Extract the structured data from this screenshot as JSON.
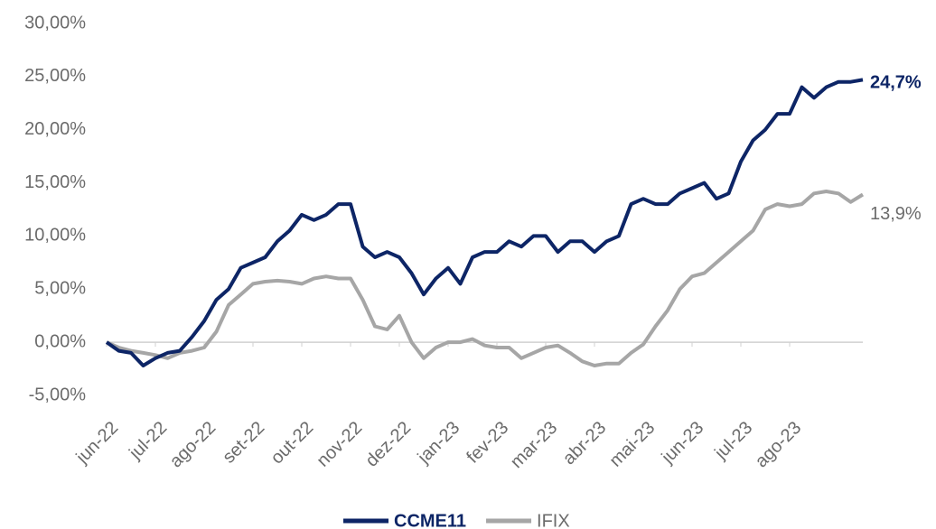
{
  "chart_data": {
    "type": "line",
    "categories": [
      "jun-22",
      null,
      null,
      null,
      "jul-22",
      null,
      null,
      null,
      "ago-22",
      null,
      null,
      null,
      "set-22",
      null,
      null,
      null,
      "out-22",
      null,
      null,
      null,
      "nov-22",
      null,
      null,
      null,
      "dez-22",
      null,
      null,
      null,
      "jan-23",
      null,
      null,
      null,
      "fev-23",
      null,
      null,
      null,
      "mar-23",
      null,
      null,
      null,
      "abr-23",
      null,
      null,
      null,
      "mai-23",
      null,
      null,
      null,
      "jun-23",
      null,
      null,
      null,
      "jul-23",
      null,
      null,
      null,
      "ago-23",
      null,
      null,
      null,
      null,
      null,
      null
    ],
    "series": [
      {
        "name": "CCME11",
        "color": "#0d2566",
        "end_label": "24,7%",
        "values": [
          0,
          -0.8,
          -1.0,
          -2.2,
          -1.5,
          -1.0,
          -0.8,
          0.5,
          2,
          4,
          5,
          7,
          7.5,
          8,
          9.5,
          10.5,
          12,
          11.5,
          12,
          13,
          13,
          9,
          8,
          8.5,
          8,
          6.5,
          4.5,
          6,
          7,
          5.5,
          8,
          8.5,
          8.5,
          9.5,
          9,
          10,
          10,
          8.5,
          9.5,
          9.5,
          8.5,
          9.5,
          10,
          13,
          13.5,
          13,
          13,
          14,
          14.5,
          15,
          13.5,
          14,
          17,
          19,
          20,
          21.5,
          21.5,
          24,
          23,
          24,
          24.5,
          24.5,
          24.7
        ]
      },
      {
        "name": "IFIX",
        "color": "#a6a6a6",
        "end_label": "13,9%",
        "values": [
          0,
          -0.5,
          -0.8,
          -1.0,
          -1.2,
          -1.5,
          -1.0,
          -0.8,
          -0.5,
          1,
          3.5,
          4.5,
          5.5,
          5.7,
          5.8,
          5.7,
          5.5,
          6.0,
          6.2,
          6.0,
          6.0,
          4,
          1.5,
          1.2,
          2.5,
          0,
          -1.5,
          -0.5,
          0,
          0,
          0.3,
          -0.3,
          -0.5,
          -0.5,
          -1.5,
          -1.0,
          -0.5,
          -0.3,
          -1.0,
          -1.8,
          -2.2,
          -2.0,
          -2.0,
          -1.0,
          -0.2,
          1.5,
          3,
          5,
          6.2,
          6.5,
          7.5,
          8.5,
          9.5,
          10.5,
          12.5,
          13,
          12.8,
          13,
          14,
          14.2,
          14,
          13.2,
          13.9
        ]
      }
    ],
    "ylim": [
      -5,
      30
    ],
    "yticks": [
      {
        "value": -5,
        "label": "-5,00%"
      },
      {
        "value": 0,
        "label": "0,00%"
      },
      {
        "value": 5,
        "label": "5,00%"
      },
      {
        "value": 10,
        "label": "10,00%"
      },
      {
        "value": 15,
        "label": "15,00%"
      },
      {
        "value": 20,
        "label": "20,00%"
      },
      {
        "value": 25,
        "label": "25,00%"
      },
      {
        "value": 30,
        "label": "30,00%"
      }
    ],
    "grid": false,
    "legend": "bottom"
  }
}
